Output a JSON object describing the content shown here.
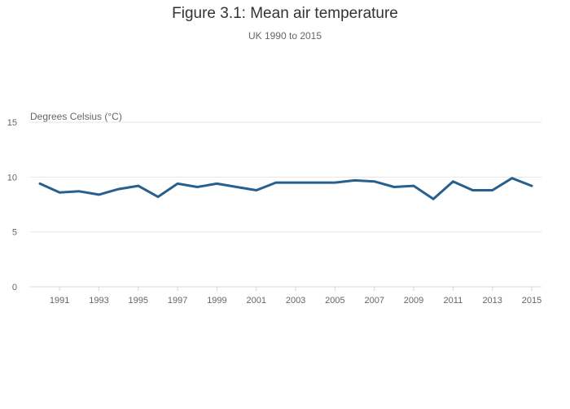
{
  "chart_data": {
    "type": "line",
    "title": "Figure 3.1: Mean air temperature",
    "subtitle": "UK 1990 to 2015",
    "ylabel": "Degrees Celsius (°C)",
    "xlabel": "",
    "ylim": [
      0,
      15
    ],
    "xlim": [
      1990,
      2015
    ],
    "yticks": [
      0,
      5,
      10,
      15
    ],
    "xticks": [
      1991,
      1993,
      1995,
      1997,
      1999,
      2001,
      2003,
      2005,
      2007,
      2009,
      2011,
      2013,
      2015
    ],
    "grid": true,
    "color": "#27608e",
    "series": [
      {
        "name": "Mean air temperature",
        "x": [
          1990,
          1991,
          1992,
          1993,
          1994,
          1995,
          1996,
          1997,
          1998,
          1999,
          2000,
          2001,
          2002,
          2003,
          2004,
          2005,
          2006,
          2007,
          2008,
          2009,
          2010,
          2011,
          2012,
          2013,
          2014,
          2015
        ],
        "values": [
          9.4,
          8.6,
          8.7,
          8.4,
          8.9,
          9.2,
          8.2,
          9.4,
          9.1,
          9.4,
          9.1,
          8.8,
          9.5,
          9.5,
          9.5,
          9.5,
          9.7,
          9.6,
          9.1,
          9.2,
          8.0,
          9.6,
          8.8,
          8.8,
          9.9,
          9.2
        ]
      }
    ]
  }
}
